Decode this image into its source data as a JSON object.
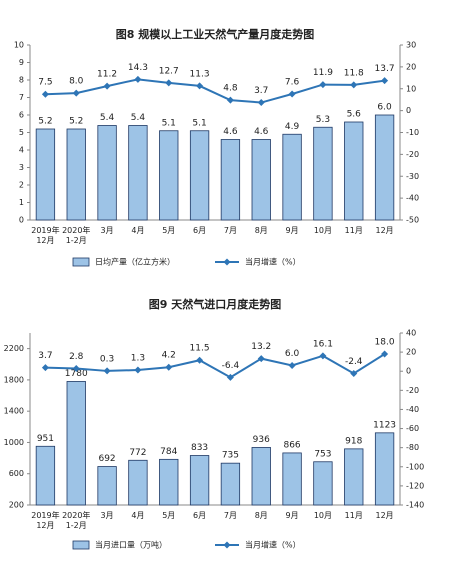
{
  "chart_data": [
    {
      "type": "combo",
      "title": "图8 规模以上工业天然气产量月度走势图",
      "categories": [
        "2019年\n12月",
        "2020年\n1-2月",
        "3月",
        "4月",
        "5月",
        "6月",
        "7月",
        "8月",
        "9月",
        "10月",
        "11月",
        "12月"
      ],
      "series": [
        {
          "name": "日均产量（亿立方米）",
          "type": "bar",
          "color": "#9dc3e6",
          "values": [
            5.2,
            5.2,
            5.4,
            5.4,
            5.1,
            5.1,
            4.6,
            4.6,
            4.9,
            5.3,
            5.6,
            6.0
          ],
          "value_labels": [
            "5.2",
            "5.2",
            "5.4",
            "5.4",
            "5.1",
            "5.1",
            "4.6",
            "4.6",
            "4.9",
            "5.3",
            "5.6",
            "6.0"
          ]
        },
        {
          "name": "当月增速（%）",
          "type": "line",
          "axis": "y2",
          "color": "#2e75b6",
          "values": [
            7.5,
            8.0,
            11.2,
            14.3,
            12.7,
            11.3,
            4.8,
            3.7,
            7.6,
            11.9,
            11.8,
            13.7
          ],
          "value_labels": [
            "7.5",
            "8.0",
            "11.2",
            "14.3",
            "12.7",
            "11.3",
            "4.8",
            "3.7",
            "7.6",
            "11.9",
            "11.8",
            "13.7"
          ]
        }
      ],
      "ylim": [
        0,
        10
      ],
      "yticks": [
        0,
        1,
        2,
        3,
        4,
        5,
        6,
        7,
        8,
        9,
        10
      ],
      "y2lim": [
        -50,
        30
      ],
      "y2ticks": [
        -50,
        -40,
        -30,
        -20,
        -10,
        0,
        10,
        20,
        30
      ]
    },
    {
      "type": "combo",
      "title": "图9 天然气进口月度走势图",
      "categories": [
        "2019年\n12月",
        "2020年\n1-2月",
        "3月",
        "4月",
        "5月",
        "6月",
        "7月",
        "8月",
        "9月",
        "10月",
        "11月",
        "12月"
      ],
      "series": [
        {
          "name": "当月进口量（万吨）",
          "type": "bar",
          "color": "#9dc3e6",
          "values": [
            951,
            1780,
            692,
            772,
            784,
            833,
            735,
            936,
            866,
            753,
            918,
            1123
          ]
        },
        {
          "name": "当月增速（%）",
          "type": "line",
          "axis": "y2",
          "color": "#2e75b6",
          "values": [
            3.7,
            2.8,
            0.3,
            1.3,
            4.2,
            11.5,
            -6.4,
            13.2,
            6.0,
            16.1,
            -2.4,
            18.0
          ],
          "value_labels": [
            "3.7",
            "2.8",
            "0.3",
            "1.3",
            "4.2",
            "11.5",
            "-6.4",
            "13.2",
            "6.0",
            "16.1",
            "-2.4",
            "18.0"
          ]
        }
      ],
      "ylim": [
        200,
        2400
      ],
      "yticks": [
        200,
        600,
        1000,
        1400,
        1800,
        2200
      ],
      "y2lim": [
        -140,
        40
      ],
      "y2ticks": [
        -140,
        -120,
        -100,
        -80,
        -60,
        -40,
        -20,
        0,
        20,
        40
      ]
    }
  ]
}
